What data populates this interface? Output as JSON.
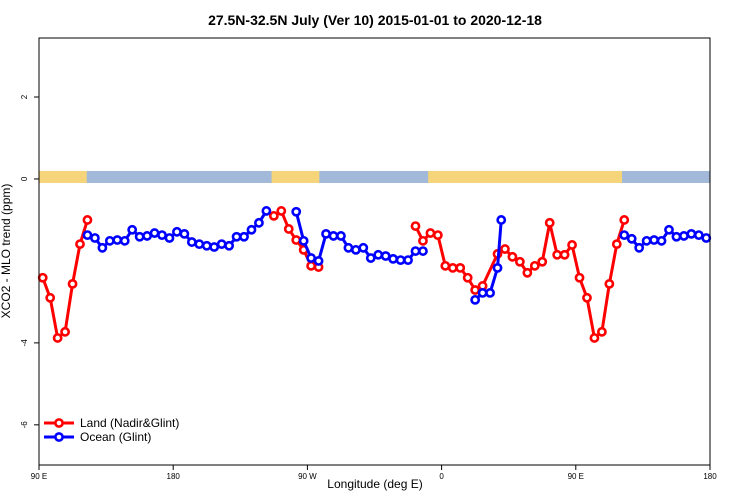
{
  "chart_data": {
    "type": "line",
    "title": "27.5N-32.5N July (Ver 10)   2015-01-01 to 2020-12-18",
    "x_label": "Longitude (deg E)",
    "y_label": "XCO2 - MLO trend (ppm)",
    "xlim": [
      90,
      540
    ],
    "ylim": [
      -6.98,
      3.44
    ],
    "xticks": [
      {
        "value": 90,
        "label": "90 E"
      },
      180,
      {
        "value": 270,
        "label": "90 W"
      },
      {
        "value": 360,
        "label": "0"
      },
      {
        "value": 450,
        "label": "90 E"
      },
      {
        "value": 540,
        "label": "180"
      }
    ],
    "yticks": [
      -6,
      -4,
      0,
      2
    ],
    "legend": "bottom-left",
    "land_strip": {
      "land_color": "#f6d57a",
      "ocean_color": "#a3b9d9",
      "land": [
        [
          90,
          122
        ],
        [
          246,
          278
        ],
        [
          351,
          481
        ]
      ]
    },
    "series": [
      {
        "name": "Land (Nadir&Glint)",
        "color": "#ff0000",
        "x": [
          92.5,
          97.5,
          102.5,
          107.5,
          112.5,
          117.5,
          122.5,
          null,
          247.5,
          252.5,
          257.5,
          262.5,
          267.5,
          272.5,
          277.5,
          null,
          342.5,
          347.5,
          352.5,
          357.5,
          362.5,
          367.5,
          372.5,
          377.5,
          382.5,
          387.5,
          397.5,
          402.5,
          407.5,
          412.5,
          417.5,
          422.5,
          427.5,
          432.5,
          437.5,
          442.5,
          447.5,
          452.5,
          457.5,
          462.5,
          467.5,
          472.5,
          477.5,
          482.5
        ],
        "values": [
          -2.41,
          -2.9,
          -3.88,
          -3.73,
          -2.56,
          -1.59,
          -1.0,
          null,
          -0.9,
          -0.78,
          -1.22,
          -1.49,
          -1.73,
          -2.12,
          -2.15,
          null,
          -1.15,
          -1.51,
          -1.32,
          -1.37,
          -2.12,
          -2.17,
          -2.17,
          -2.41,
          -2.71,
          -2.61,
          -1.83,
          -1.71,
          -1.9,
          -2.02,
          -2.29,
          -2.12,
          -2.02,
          -1.07,
          -1.85,
          -1.85,
          -1.61,
          -2.41,
          -2.9,
          -3.88,
          -3.73,
          -2.56,
          -1.59,
          -1.0
        ]
      },
      {
        "name": "Ocean (Glint)",
        "color": "#0000ff",
        "x": [
          122.5,
          127.5,
          132.5,
          137.5,
          142.5,
          147.5,
          152.5,
          157.5,
          162.5,
          167.5,
          172.5,
          177.5,
          182.5,
          187.5,
          192.5,
          197.5,
          202.5,
          207.5,
          212.5,
          217.5,
          222.5,
          227.5,
          232.5,
          237.5,
          242.5,
          null,
          262.5,
          267.5,
          272.5,
          277.5,
          282.5,
          287.5,
          292.5,
          297.5,
          302.5,
          307.5,
          312.5,
          317.5,
          322.5,
          327.5,
          332.5,
          337.5,
          342.5,
          347.5,
          null,
          382.5,
          387.5,
          392.5,
          397.5,
          400,
          null,
          482.5,
          487.5,
          492.5,
          497.5,
          502.5,
          507.5,
          512.5,
          517.5,
          522.5,
          527.5,
          532.5,
          537.5
        ],
        "values": [
          -1.37,
          -1.44,
          -1.68,
          -1.51,
          -1.49,
          -1.51,
          -1.24,
          -1.41,
          -1.39,
          -1.32,
          -1.37,
          -1.44,
          -1.29,
          -1.34,
          -1.54,
          -1.59,
          -1.63,
          -1.66,
          -1.59,
          -1.63,
          -1.41,
          -1.41,
          -1.24,
          -1.07,
          -0.78,
          null,
          -0.8,
          -1.51,
          -1.93,
          -2.0,
          -1.34,
          -1.39,
          -1.39,
          -1.68,
          -1.73,
          -1.68,
          -1.93,
          -1.85,
          -1.88,
          -1.95,
          -1.98,
          -1.98,
          -1.76,
          -1.76,
          null,
          -2.95,
          -2.78,
          -2.78,
          -2.17,
          -1.0,
          null,
          -1.37,
          -1.46,
          -1.68,
          -1.51,
          -1.49,
          -1.51,
          -1.24,
          -1.41,
          -1.39,
          -1.34,
          -1.37,
          -1.44
        ]
      }
    ]
  }
}
